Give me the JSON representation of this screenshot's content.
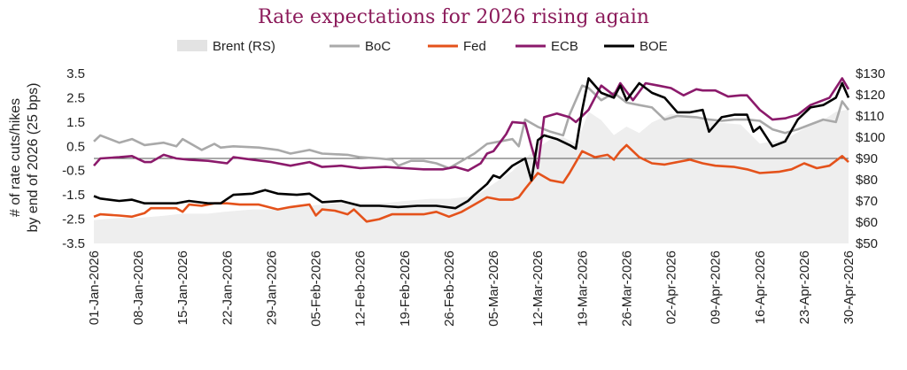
{
  "colors": {
    "title": "#8B1A5A",
    "brent": "#eeeeee",
    "boc": "#a9a9a9",
    "fed": "#e4521b",
    "ecb": "#8B1A6B",
    "boe": "#000000",
    "zero_line": "#555555"
  },
  "chart_data": {
    "type": "line",
    "title": "Rate expectations for 2026 rising again",
    "ylabel_lines": [
      "# of rate cuts/hikes",
      "by end of 2026 (25 bps)"
    ],
    "ylim": [
      -3.5,
      3.5
    ],
    "y2lim": [
      50,
      130
    ],
    "yticks": [
      "3.5",
      "2.5",
      "1.5",
      "0.5",
      "-0.5",
      "-1.5",
      "-2.5",
      "-3.5"
    ],
    "y2ticks": [
      "$130",
      "$120",
      "$110",
      "$100",
      "$90",
      "$80",
      "$70",
      "$60",
      "$50"
    ],
    "x_tick_labels": [
      "01-Jan-2026",
      "08-Jan-2026",
      "15-Jan-2026",
      "22-Jan-2026",
      "29-Jan-2026",
      "05-Feb-2026",
      "12-Feb-2026",
      "19-Feb-2026",
      "26-Feb-2026",
      "05-Mar-2026",
      "12-Mar-2026",
      "19-Mar-2026",
      "26-Mar-2026",
      "02-Apr-2026",
      "09-Apr-2026",
      "16-Apr-2026",
      "23-Apr-2026",
      "30-Apr-2026"
    ],
    "legend": [
      "Brent (RS)",
      "BoC",
      "Fed",
      "ECB",
      "BOE"
    ],
    "series": [
      {
        "name": "Brent (RS)",
        "kind": "area",
        "axis": "right",
        "x": [
          "2026-01-01",
          "2026-01-05",
          "2026-01-08",
          "2026-01-12",
          "2026-01-15",
          "2026-01-19",
          "2026-01-22",
          "2026-01-26",
          "2026-01-29",
          "2026-02-02",
          "2026-02-05",
          "2026-02-09",
          "2026-02-12",
          "2026-02-16",
          "2026-02-19",
          "2026-02-23",
          "2026-02-26",
          "2026-03-01",
          "2026-03-03",
          "2026-03-05",
          "2026-03-08",
          "2026-03-10",
          "2026-03-12",
          "2026-03-14",
          "2026-03-16",
          "2026-03-18",
          "2026-03-19",
          "2026-03-20",
          "2026-03-22",
          "2026-03-24",
          "2026-03-26",
          "2026-03-28",
          "2026-03-30",
          "2026-04-02",
          "2026-04-06",
          "2026-04-09",
          "2026-04-13",
          "2026-04-16",
          "2026-04-20",
          "2026-04-23",
          "2026-04-26",
          "2026-04-28",
          "2026-04-30"
        ],
        "values": [
          61,
          62,
          62,
          63,
          64,
          64,
          65,
          66,
          66,
          67,
          68,
          69,
          69,
          69,
          70,
          71,
          71,
          72,
          74,
          78,
          84,
          90,
          95,
          99,
          100,
          97,
          104,
          112,
          108,
          101,
          105,
          102,
          107,
          111,
          109,
          107,
          106,
          97,
          99,
          104,
          108,
          112,
          113
        ]
      },
      {
        "name": "BoC",
        "kind": "line",
        "axis": "left",
        "x": [
          "2026-01-01",
          "2026-01-02",
          "2026-01-05",
          "2026-01-07",
          "2026-01-09",
          "2026-01-12",
          "2026-01-14",
          "2026-01-15",
          "2026-01-18",
          "2026-01-20",
          "2026-01-21",
          "2026-01-23",
          "2026-01-27",
          "2026-01-30",
          "2026-02-01",
          "2026-02-04",
          "2026-02-06",
          "2026-02-10",
          "2026-02-12",
          "2026-02-15",
          "2026-02-17",
          "2026-02-18",
          "2026-02-20",
          "2026-02-22",
          "2026-02-24",
          "2026-02-26",
          "2026-02-28",
          "2026-03-02",
          "2026-03-04",
          "2026-03-06",
          "2026-03-08",
          "2026-03-09",
          "2026-03-10",
          "2026-03-12",
          "2026-03-14",
          "2026-03-16",
          "2026-03-17",
          "2026-03-19",
          "2026-03-20",
          "2026-03-22",
          "2026-03-24",
          "2026-03-26",
          "2026-03-28",
          "2026-03-30",
          "2026-04-01",
          "2026-04-03",
          "2026-04-06",
          "2026-04-08",
          "2026-04-10",
          "2026-04-12",
          "2026-04-14",
          "2026-04-16",
          "2026-04-18",
          "2026-04-20",
          "2026-04-22",
          "2026-04-24",
          "2026-04-26",
          "2026-04-28",
          "2026-04-29",
          "2026-04-30"
        ],
        "values": [
          0.7,
          0.95,
          0.65,
          0.8,
          0.55,
          0.65,
          0.5,
          0.8,
          0.35,
          0.6,
          0.45,
          0.5,
          0.45,
          0.35,
          0.2,
          0.35,
          0.2,
          0.15,
          0.05,
          0.0,
          -0.05,
          -0.3,
          -0.1,
          -0.1,
          -0.2,
          -0.4,
          -0.1,
          0.2,
          0.6,
          0.7,
          0.8,
          0.5,
          1.6,
          1.3,
          1.1,
          0.95,
          1.8,
          3.0,
          2.9,
          2.4,
          2.7,
          2.3,
          2.2,
          2.1,
          1.6,
          1.75,
          1.7,
          1.6,
          1.55,
          1.6,
          1.6,
          1.55,
          1.2,
          1.05,
          1.2,
          1.4,
          1.6,
          1.5,
          2.35,
          2.0
        ]
      },
      {
        "name": "Fed",
        "kind": "line",
        "axis": "left",
        "x": [
          "2026-01-01",
          "2026-01-02",
          "2026-01-05",
          "2026-01-07",
          "2026-01-09",
          "2026-01-10",
          "2026-01-12",
          "2026-01-14",
          "2026-01-15",
          "2026-01-16",
          "2026-01-18",
          "2026-01-20",
          "2026-01-22",
          "2026-01-24",
          "2026-01-27",
          "2026-01-30",
          "2026-02-01",
          "2026-02-04",
          "2026-02-05",
          "2026-02-06",
          "2026-02-08",
          "2026-02-10",
          "2026-02-11",
          "2026-02-13",
          "2026-02-15",
          "2026-02-17",
          "2026-02-19",
          "2026-02-22",
          "2026-02-24",
          "2026-02-26",
          "2026-02-28",
          "2026-03-02",
          "2026-03-04",
          "2026-03-06",
          "2026-03-08",
          "2026-03-09",
          "2026-03-10",
          "2026-03-12",
          "2026-03-14",
          "2026-03-16",
          "2026-03-17",
          "2026-03-19",
          "2026-03-21",
          "2026-03-23",
          "2026-03-24",
          "2026-03-25",
          "2026-03-26",
          "2026-03-28",
          "2026-03-30",
          "2026-04-01",
          "2026-04-03",
          "2026-04-05",
          "2026-04-07",
          "2026-04-09",
          "2026-04-12",
          "2026-04-14",
          "2026-04-16",
          "2026-04-19",
          "2026-04-21",
          "2026-04-23",
          "2026-04-25",
          "2026-04-27",
          "2026-04-29",
          "2026-04-30"
        ],
        "values": [
          -2.4,
          -2.3,
          -2.35,
          -2.4,
          -2.25,
          -2.05,
          -2.05,
          -2.05,
          -2.2,
          -1.9,
          -1.95,
          -1.85,
          -1.85,
          -1.9,
          -1.9,
          -2.1,
          -2.0,
          -1.9,
          -2.35,
          -2.1,
          -2.15,
          -2.3,
          -2.1,
          -2.6,
          -2.5,
          -2.3,
          -2.3,
          -2.3,
          -2.2,
          -2.4,
          -2.2,
          -1.9,
          -1.6,
          -1.7,
          -1.7,
          -1.6,
          -1.25,
          -0.6,
          -0.9,
          -1.0,
          -0.6,
          0.3,
          0.05,
          0.15,
          -0.05,
          0.3,
          0.55,
          0.05,
          -0.2,
          -0.25,
          -0.15,
          -0.05,
          -0.2,
          -0.3,
          -0.35,
          -0.45,
          -0.6,
          -0.55,
          -0.45,
          -0.2,
          -0.4,
          -0.3,
          0.1,
          -0.15
        ]
      },
      {
        "name": "ECB",
        "kind": "line",
        "axis": "left",
        "x": [
          "2026-01-01",
          "2026-01-02",
          "2026-01-05",
          "2026-01-07",
          "2026-01-09",
          "2026-01-10",
          "2026-01-12",
          "2026-01-14",
          "2026-01-16",
          "2026-01-19",
          "2026-01-22",
          "2026-01-23",
          "2026-01-26",
          "2026-01-29",
          "2026-02-01",
          "2026-02-04",
          "2026-02-06",
          "2026-02-09",
          "2026-02-12",
          "2026-02-16",
          "2026-02-19",
          "2026-02-22",
          "2026-02-25",
          "2026-02-27",
          "2026-03-01",
          "2026-03-03",
          "2026-03-04",
          "2026-03-05",
          "2026-03-07",
          "2026-03-08",
          "2026-03-10",
          "2026-03-11",
          "2026-03-12",
          "2026-03-13",
          "2026-03-15",
          "2026-03-17",
          "2026-03-18",
          "2026-03-20",
          "2026-03-22",
          "2026-03-24",
          "2026-03-25",
          "2026-03-27",
          "2026-03-29",
          "2026-03-31",
          "2026-04-02",
          "2026-04-04",
          "2026-04-06",
          "2026-04-07",
          "2026-04-09",
          "2026-04-11",
          "2026-04-13",
          "2026-04-14",
          "2026-04-16",
          "2026-04-18",
          "2026-04-20",
          "2026-04-22",
          "2026-04-24",
          "2026-04-26",
          "2026-04-27",
          "2026-04-29",
          "2026-04-30"
        ],
        "values": [
          -0.3,
          0.0,
          0.05,
          0.1,
          -0.15,
          -0.15,
          0.15,
          0.0,
          -0.05,
          -0.1,
          -0.2,
          0.05,
          -0.05,
          -0.15,
          -0.3,
          -0.15,
          -0.35,
          -0.3,
          -0.4,
          -0.35,
          -0.4,
          -0.45,
          -0.45,
          -0.35,
          -0.5,
          -0.2,
          0.2,
          0.3,
          1.0,
          1.5,
          1.45,
          0.5,
          -0.4,
          1.7,
          1.85,
          1.7,
          1.5,
          2.0,
          3.0,
          2.6,
          3.1,
          2.4,
          3.1,
          3.0,
          2.9,
          2.6,
          2.85,
          2.8,
          2.8,
          2.55,
          2.6,
          2.6,
          2.0,
          1.6,
          1.65,
          1.8,
          2.2,
          2.4,
          2.5,
          3.3,
          2.85
        ]
      },
      {
        "name": "BOE",
        "kind": "line",
        "axis": "left",
        "x": [
          "2026-01-01",
          "2026-01-02",
          "2026-01-05",
          "2026-01-07",
          "2026-01-09",
          "2026-01-12",
          "2026-01-14",
          "2026-01-16",
          "2026-01-19",
          "2026-01-21",
          "2026-01-23",
          "2026-01-26",
          "2026-01-28",
          "2026-01-30",
          "2026-02-02",
          "2026-02-04",
          "2026-02-06",
          "2026-02-09",
          "2026-02-12",
          "2026-02-15",
          "2026-02-18",
          "2026-02-21",
          "2026-02-24",
          "2026-02-27",
          "2026-03-01",
          "2026-03-02",
          "2026-03-04",
          "2026-03-05",
          "2026-03-06",
          "2026-03-08",
          "2026-03-09",
          "2026-03-10",
          "2026-03-11",
          "2026-03-12",
          "2026-03-13",
          "2026-03-15",
          "2026-03-17",
          "2026-03-18",
          "2026-03-19",
          "2026-03-20",
          "2026-03-22",
          "2026-03-24",
          "2026-03-25",
          "2026-03-26",
          "2026-03-28",
          "2026-03-30",
          "2026-04-01",
          "2026-04-03",
          "2026-04-05",
          "2026-04-07",
          "2026-04-08",
          "2026-04-10",
          "2026-04-12",
          "2026-04-14",
          "2026-04-15",
          "2026-04-16",
          "2026-04-18",
          "2026-04-20",
          "2026-04-22",
          "2026-04-24",
          "2026-04-26",
          "2026-04-28",
          "2026-04-29",
          "2026-04-30"
        ],
        "values": [
          -1.55,
          -1.65,
          -1.75,
          -1.7,
          -1.85,
          -1.85,
          -1.85,
          -1.75,
          -1.85,
          -1.85,
          -1.5,
          -1.45,
          -1.3,
          -1.45,
          -1.5,
          -1.45,
          -1.8,
          -1.75,
          -1.95,
          -1.95,
          -2.0,
          -1.95,
          -1.95,
          -2.05,
          -1.75,
          -1.5,
          -1.05,
          -0.7,
          -0.8,
          -0.3,
          -0.15,
          0.0,
          -0.9,
          0.75,
          0.95,
          0.8,
          0.55,
          0.4,
          2.0,
          3.3,
          2.7,
          2.5,
          3.0,
          2.4,
          3.1,
          2.7,
          2.5,
          1.9,
          1.9,
          2.0,
          1.1,
          1.7,
          1.8,
          1.8,
          1.1,
          1.3,
          0.5,
          0.7,
          1.6,
          2.1,
          2.2,
          2.5,
          3.1,
          2.5
        ]
      }
    ]
  }
}
